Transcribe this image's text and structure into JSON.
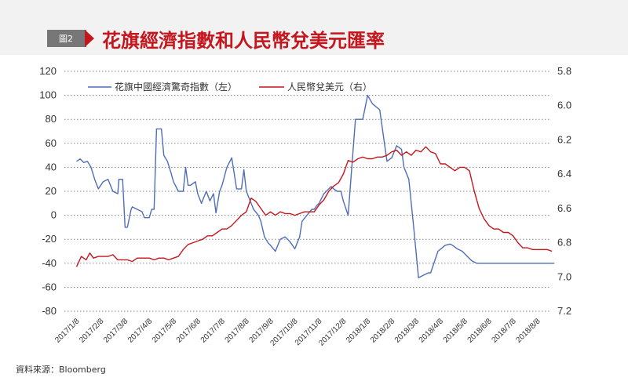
{
  "badge": "圖2",
  "title": "花旗經濟指數和人民幣兌美元匯率",
  "source": "資料來源：Bloomberg",
  "colors": {
    "blue": "#4f6db8",
    "red": "#c4161c",
    "bg": "#f2f2f2"
  },
  "chart_data": {
    "type": "line",
    "x_labels": [
      "2017/1/8",
      "2017/2/8",
      "2017/3/8",
      "2017/4/8",
      "2017/5/8",
      "2017/6/8",
      "2017/7/8",
      "2017/8/8",
      "2017/9/8",
      "2017/10/8",
      "2017/11/8",
      "2017/12/8",
      "2018/1/8",
      "2018/2/8",
      "2018/3/8",
      "2018/4/8",
      "2018/5/8",
      "2018/6/8",
      "2018/7/8",
      "2018/8/8"
    ],
    "left_axis": {
      "min": -80,
      "max": 120,
      "ticks": [
        "120",
        "100",
        "80",
        "60",
        "40",
        "20",
        "0",
        "-20",
        "-40",
        "-60",
        "-80"
      ]
    },
    "right_axis": {
      "min": 5.8,
      "max": 7.2,
      "reversed": true,
      "ticks": [
        "5.8",
        "6.0",
        "6.2",
        "6.4",
        "6.6",
        "6.8",
        "7.0",
        "7.2"
      ]
    },
    "series": [
      {
        "name": "花旗中國經濟驚奇指數（左）",
        "axis": "left",
        "x": [
          0,
          0.15,
          0.3,
          0.45,
          0.6,
          0.75,
          0.9,
          1.1,
          1.3,
          1.5,
          1.7,
          1.75,
          1.9,
          2.0,
          2.1,
          2.25,
          2.3,
          2.5,
          2.7,
          2.8,
          3.0,
          3.1,
          3.2,
          3.3,
          3.4,
          3.5,
          3.6,
          3.75,
          3.9,
          4.0,
          4.2,
          4.4,
          4.5,
          4.6,
          4.7,
          4.9,
          5.0,
          5.15,
          5.35,
          5.5,
          5.65,
          5.75,
          5.9,
          6.0,
          6.2,
          6.4,
          6.6,
          6.7,
          6.8,
          6.9,
          7.0,
          7.3,
          7.5,
          7.6,
          7.75,
          7.9,
          8.0,
          8.2,
          8.4,
          8.6,
          8.8,
          9.0,
          9.2,
          9.3,
          9.5,
          9.7,
          9.8,
          9.9,
          10.0,
          10.2,
          10.4,
          10.5,
          10.6,
          10.75,
          10.9,
          11.0,
          11.2,
          11.5,
          11.8,
          12.0,
          12.2,
          12.5,
          12.8,
          13.0,
          13.2,
          13.4,
          13.5,
          13.7,
          13.9,
          14.1,
          14.3,
          14.5,
          14.6,
          14.9,
          15.2,
          15.4,
          15.5,
          15.7,
          15.9,
          16.1,
          16.3,
          16.5,
          16.7,
          16.9,
          17.0,
          17.3,
          17.5,
          17.7,
          17.9,
          18.2,
          18.5,
          18.7,
          18.9,
          19.1,
          19.3,
          19.5,
          19.7
        ],
        "values": [
          45,
          47,
          44,
          45,
          40,
          30,
          22,
          28,
          30,
          20,
          18,
          30,
          30,
          -10,
          -10,
          5,
          7,
          5,
          3,
          -2,
          -2,
          5,
          5,
          72,
          72,
          72,
          50,
          45,
          35,
          28,
          20,
          20,
          40,
          25,
          25,
          28,
          18,
          10,
          20,
          12,
          18,
          2,
          20,
          25,
          40,
          48,
          22,
          22,
          22,
          38,
          20,
          5,
          0,
          -5,
          -18,
          -23,
          -25,
          -30,
          -20,
          -18,
          -22,
          -28,
          -18,
          -5,
          0,
          5,
          5,
          8,
          10,
          18,
          22,
          24,
          22,
          20,
          20,
          12,
          0,
          80,
          80,
          100,
          93,
          88,
          45,
          48,
          58,
          55,
          40,
          30,
          -10,
          -52,
          -50,
          -48,
          -48,
          -30,
          -25,
          -24,
          -25,
          -28,
          -30,
          -34,
          -38,
          -40,
          -40,
          -40,
          -40,
          -40,
          -40,
          -40,
          -40,
          -40,
          -40,
          -40,
          -40,
          -40,
          -40,
          -40,
          -40
        ],
        "color": "#4f6db8"
      },
      {
        "name": "人民幣兌美元（右）",
        "axis": "right",
        "x": [
          0,
          0.2,
          0.4,
          0.55,
          0.7,
          0.9,
          1.1,
          1.3,
          1.5,
          1.7,
          1.9,
          2.1,
          2.3,
          2.5,
          2.8,
          3.0,
          3.2,
          3.4,
          3.6,
          3.8,
          4.0,
          4.2,
          4.4,
          4.6,
          4.8,
          5.0,
          5.2,
          5.4,
          5.6,
          5.8,
          6.0,
          6.2,
          6.4,
          6.6,
          6.8,
          7.0,
          7.2,
          7.4,
          7.6,
          7.8,
          8.0,
          8.2,
          8.4,
          8.6,
          8.8,
          9.0,
          9.2,
          9.4,
          9.6,
          9.8,
          10.0,
          10.2,
          10.4,
          10.6,
          10.8,
          11.0,
          11.2,
          11.4,
          11.6,
          11.8,
          12.0,
          12.2,
          12.4,
          12.6,
          12.8,
          13.0,
          13.2,
          13.4,
          13.6,
          13.8,
          14.0,
          14.2,
          14.4,
          14.6,
          14.8,
          15.0,
          15.2,
          15.4,
          15.6,
          15.8,
          16.0,
          16.2,
          16.4,
          16.6,
          16.8,
          17.0,
          17.2,
          17.4,
          17.6,
          17.8,
          18.0,
          18.2,
          18.4,
          18.6,
          18.8,
          19.0,
          19.2,
          19.4,
          19.6
        ],
        "values": [
          6.94,
          6.88,
          6.9,
          6.86,
          6.89,
          6.88,
          6.88,
          6.88,
          6.87,
          6.9,
          6.9,
          6.9,
          6.91,
          6.89,
          6.89,
          6.89,
          6.9,
          6.89,
          6.89,
          6.9,
          6.89,
          6.88,
          6.84,
          6.81,
          6.8,
          6.79,
          6.78,
          6.76,
          6.76,
          6.74,
          6.72,
          6.72,
          6.7,
          6.67,
          6.64,
          6.62,
          6.54,
          6.56,
          6.6,
          6.64,
          6.62,
          6.64,
          6.62,
          6.63,
          6.63,
          6.64,
          6.63,
          6.62,
          6.62,
          6.62,
          6.58,
          6.55,
          6.5,
          6.47,
          6.45,
          6.4,
          6.32,
          6.33,
          6.31,
          6.3,
          6.31,
          6.31,
          6.3,
          6.3,
          6.29,
          6.27,
          6.26,
          6.29,
          6.27,
          6.29,
          6.26,
          6.27,
          6.24,
          6.27,
          6.28,
          6.34,
          6.34,
          6.36,
          6.38,
          6.36,
          6.36,
          6.38,
          6.5,
          6.6,
          6.66,
          6.7,
          6.72,
          6.72,
          6.74,
          6.74,
          6.76,
          6.8,
          6.83,
          6.83,
          6.84,
          6.84,
          6.84,
          6.84,
          6.85
        ],
        "color": "#c4161c"
      }
    ]
  }
}
